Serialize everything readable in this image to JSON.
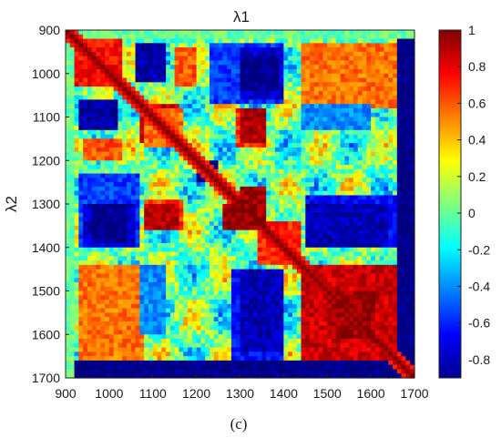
{
  "chart_data": {
    "type": "heatmap",
    "title": "λ1",
    "xlabel": "",
    "ylabel": "λ2",
    "caption": "(c)",
    "x_ticks": [
      900,
      1000,
      1100,
      1200,
      1300,
      1400,
      1500,
      1600,
      1700
    ],
    "y_ticks": [
      900,
      1000,
      1100,
      1200,
      1300,
      1400,
      1500,
      1600,
      1700
    ],
    "xlim": [
      900,
      1700
    ],
    "ylim": [
      900,
      1700
    ],
    "y_reversed": true,
    "colorbar": {
      "range": [
        -0.9,
        1
      ],
      "ticks": [
        1,
        0.8,
        0.6,
        0.4,
        0.2,
        0,
        -0.2,
        -0.4,
        -0.6,
        -0.8
      ],
      "tick_labels": [
        "1",
        "0.8",
        "0.6",
        "0.4",
        "0.2",
        "0",
        "-0.2",
        "-0.4",
        "-0.6",
        "-0.8"
      ],
      "colormap": "jet"
    },
    "regions": [
      {
        "x": [
          1300,
          1360
        ],
        "y": [
          1260,
          1360
        ],
        "value": 0.95
      },
      {
        "x": [
          1450,
          1660
        ],
        "y": [
          1440,
          1640
        ],
        "value": 0.85
      },
      {
        "x": [
          1520,
          1610
        ],
        "y": [
          1500,
          1610
        ],
        "value": 0.95
      },
      {
        "x": [
          1340,
          1440
        ],
        "y": [
          1360,
          1440
        ],
        "value": 0.7
      },
      {
        "x": [
          1520,
          1640
        ],
        "y": [
          930,
          1050
        ],
        "value": 0.8
      },
      {
        "x": [
          1460,
          1660
        ],
        "y": [
          930,
          1060
        ],
        "value": 0.6
      },
      {
        "x": [
          930,
          1060
        ],
        "y": [
          1460,
          1640
        ],
        "value": 0.8
      },
      {
        "x": [
          930,
          1080
        ],
        "y": [
          1440,
          1660
        ],
        "value": 0.55
      },
      {
        "x": [
          920,
          1020
        ],
        "y": [
          920,
          1030
        ],
        "value": 0.75
      },
      {
        "x": [
          1100,
          1160
        ],
        "y": [
          1070,
          1130
        ],
        "value": 0.85
      },
      {
        "x": [
          1290,
          1360
        ],
        "y": [
          1080,
          1150
        ],
        "value": 0.85
      },
      {
        "x": [
          1080,
          1170
        ],
        "y": [
          1080,
          1140
        ],
        "value": 0.55
      },
      {
        "x": [
          1080,
          1170
        ],
        "y": [
          1290,
          1360
        ],
        "value": 0.65
      },
      {
        "x": [
          1080,
          1160
        ],
        "y": [
          1300,
          1360
        ],
        "value": 0.9
      },
      {
        "x": [
          1060,
          1130
        ],
        "y": [
          930,
          1020
        ],
        "value": -0.85
      },
      {
        "x": [
          1150,
          1200
        ],
        "y": [
          940,
          1030
        ],
        "value": 0.6
      },
      {
        "x": [
          1300,
          1400
        ],
        "y": [
          960,
          1060
        ],
        "value": -0.85
      },
      {
        "x": [
          1230,
          1400
        ],
        "y": [
          930,
          1070
        ],
        "value": -0.55
      },
      {
        "x": [
          1450,
          1660
        ],
        "y": [
          1280,
          1400
        ],
        "value": -0.65
      },
      {
        "x": [
          1480,
          1600
        ],
        "y": [
          1300,
          1380
        ],
        "value": -0.85
      },
      {
        "x": [
          940,
          1060
        ],
        "y": [
          1300,
          1400
        ],
        "value": -0.75
      },
      {
        "x": [
          960,
          1040
        ],
        "y": [
          1300,
          1390
        ],
        "value": -0.9
      },
      {
        "x": [
          1300,
          1400
        ],
        "y": [
          1450,
          1640
        ],
        "value": -0.8
      },
      {
        "x": [
          1070,
          1130
        ],
        "y": [
          1440,
          1600
        ],
        "value": -0.4
      },
      {
        "x": [
          1660,
          1700
        ],
        "y": [
          930,
          1700
        ],
        "value": -0.92
      },
      {
        "x": [
          900,
          1700
        ],
        "y": [
          1660,
          1700
        ],
        "value": -0.92
      },
      {
        "x": [
          900,
          1700
        ],
        "y": [
          900,
          920
        ],
        "value": 0.05
      },
      {
        "x": [
          900,
          920
        ],
        "y": [
          900,
          1700
        ],
        "value": 0.0
      },
      {
        "x": [
          1200,
          1250
        ],
        "y": [
          1200,
          1250
        ],
        "value": -0.9
      }
    ]
  }
}
